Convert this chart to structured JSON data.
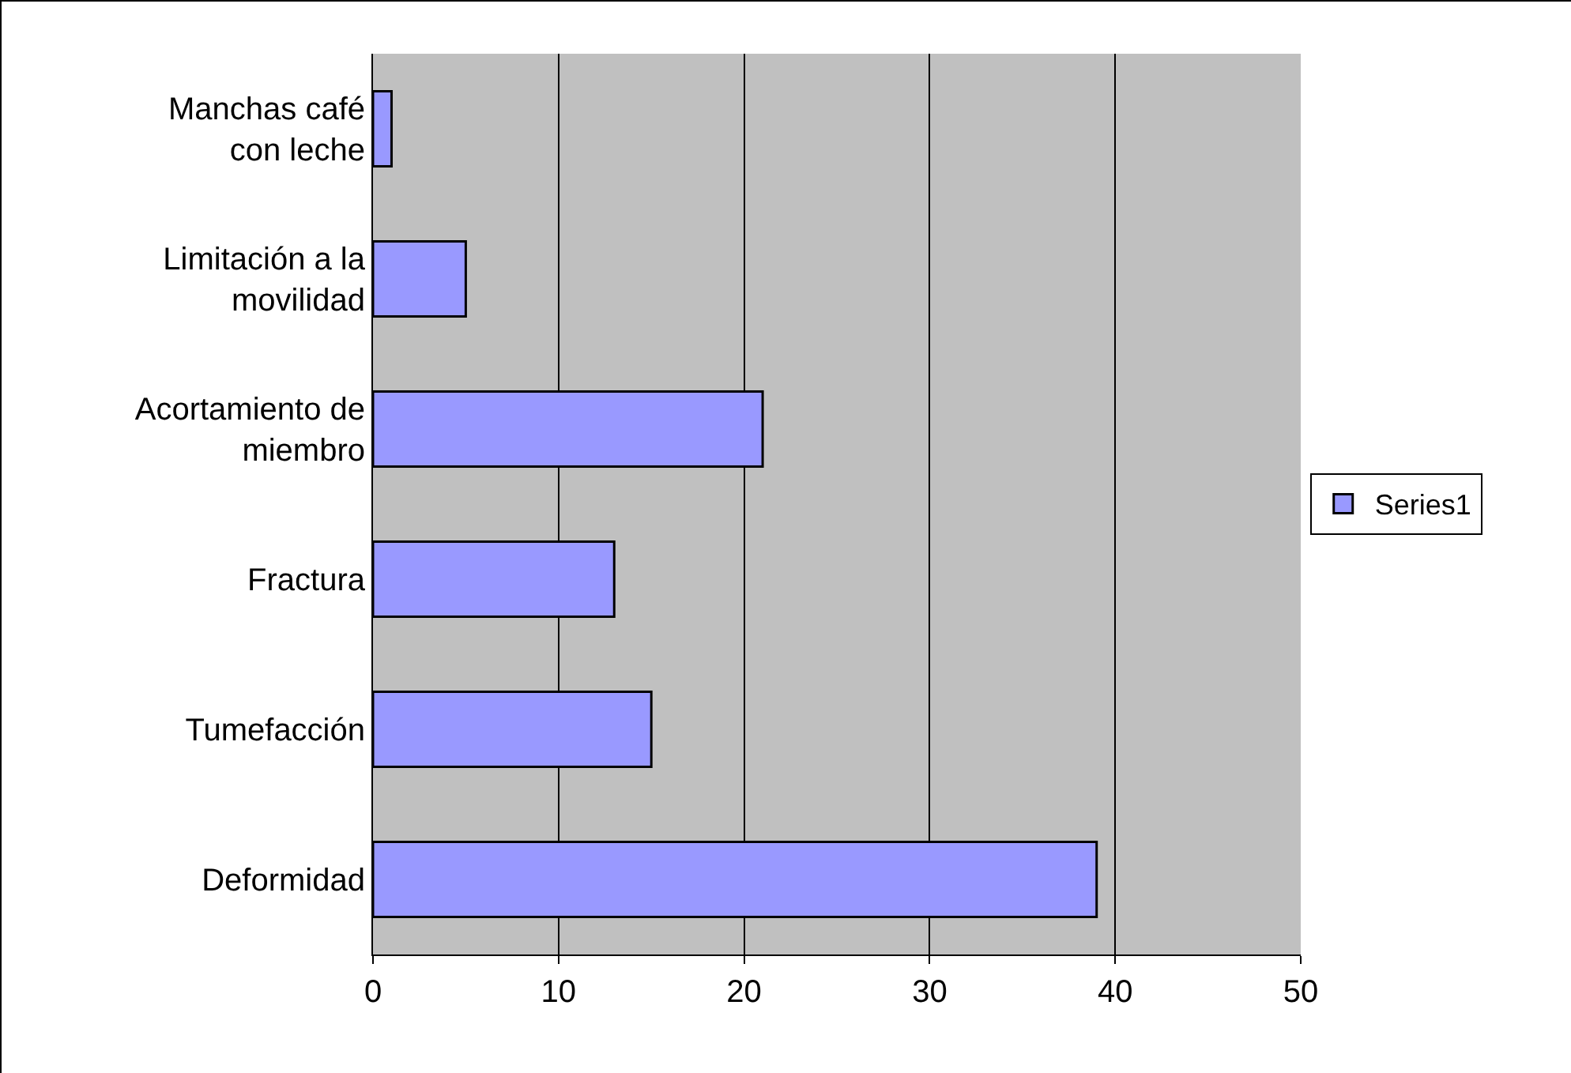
{
  "chart_data": {
    "type": "bar",
    "orientation": "horizontal",
    "categories": [
      "Manchas café con leche",
      "Limitación a la movilidad",
      "Acortamiento de miembro",
      "Fractura",
      "Tumefacción",
      "Deformidad"
    ],
    "series": [
      {
        "name": "Series1",
        "color": "#9999ff",
        "values": [
          1,
          5,
          21,
          13,
          15,
          39
        ]
      }
    ],
    "xlim": [
      0,
      50
    ],
    "xticks": [
      0,
      10,
      20,
      30,
      40,
      50
    ],
    "grid": "x",
    "legend": "right"
  }
}
